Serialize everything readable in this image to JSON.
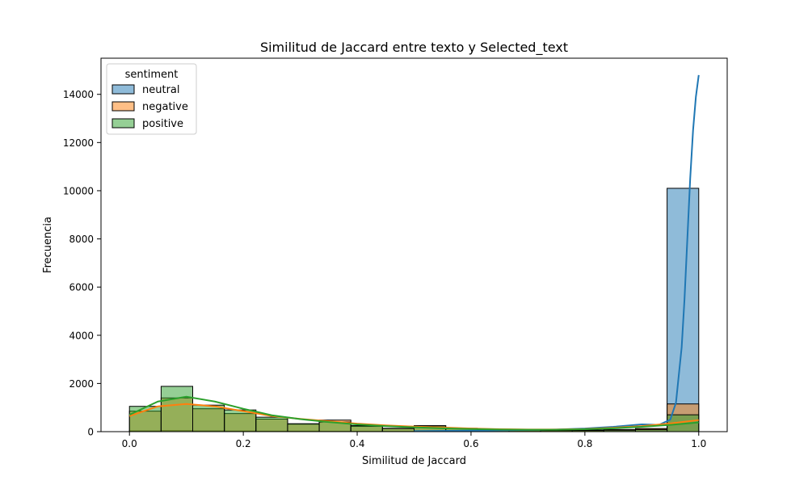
{
  "chart_data": {
    "type": "bar",
    "title": "Similitud de Jaccard entre texto y Selected_text",
    "xlabel": "Similitud de Jaccard",
    "ylabel": "Frecuencia",
    "xlim": [
      -0.05,
      1.05
    ],
    "ylim": [
      0,
      15500
    ],
    "xticks": [
      0.0,
      0.2,
      0.4,
      0.6,
      0.8,
      1.0
    ],
    "xtick_labels": [
      "0.0",
      "0.2",
      "0.4",
      "0.6",
      "0.8",
      "1.0"
    ],
    "yticks": [
      0,
      2000,
      4000,
      6000,
      8000,
      10000,
      12000,
      14000
    ],
    "ytick_labels": [
      "0",
      "2000",
      "4000",
      "6000",
      "8000",
      "10000",
      "12000",
      "14000"
    ],
    "grid": false,
    "legend": {
      "title": "sentiment",
      "placement": "top-left"
    },
    "bin_edges": [
      0.0,
      0.0556,
      0.1111,
      0.1667,
      0.2222,
      0.2778,
      0.3333,
      0.3889,
      0.4444,
      0.5,
      0.5556,
      0.6111,
      0.6667,
      0.7222,
      0.7778,
      0.8333,
      0.8889,
      0.9444,
      1.0
    ],
    "series": [
      {
        "name": "neutral",
        "color": "#1f77b4",
        "values": [
          30,
          40,
          30,
          25,
          20,
          20,
          15,
          15,
          15,
          10,
          10,
          10,
          15,
          20,
          30,
          60,
          110,
          10100
        ],
        "kde": {
          "x": [
            0.5,
            0.6,
            0.7,
            0.75,
            0.8,
            0.85,
            0.9,
            0.93,
            0.95,
            0.96,
            0.97,
            0.975,
            0.98,
            0.985,
            0.99,
            0.995,
            1.0
          ],
          "y": [
            20,
            40,
            70,
            90,
            130,
            200,
            300,
            280,
            500,
            1200,
            3500,
            5500,
            8000,
            10500,
            12500,
            13900,
            14800
          ]
        }
      },
      {
        "name": "negative",
        "color": "#ff7f0e",
        "values": [
          850,
          1400,
          950,
          750,
          520,
          310,
          480,
          220,
          140,
          250,
          140,
          90,
          80,
          70,
          70,
          90,
          130,
          1150
        ],
        "kde": {
          "x": [
            0.0,
            0.05,
            0.1,
            0.15,
            0.2,
            0.25,
            0.3,
            0.35,
            0.4,
            0.45,
            0.5,
            0.55,
            0.6,
            0.65,
            0.7,
            0.75,
            0.8,
            0.85,
            0.9,
            0.95,
            1.0
          ],
          "y": [
            650,
            1050,
            1150,
            1050,
            850,
            650,
            530,
            430,
            330,
            260,
            210,
            170,
            130,
            100,
            90,
            90,
            110,
            160,
            230,
            340,
            480
          ]
        }
      },
      {
        "name": "positive",
        "color": "#2ca02c",
        "values": [
          1050,
          1880,
          1100,
          900,
          600,
          330,
          400,
          250,
          130,
          240,
          120,
          80,
          60,
          50,
          50,
          60,
          80,
          700
        ],
        "kde": {
          "x": [
            0.0,
            0.05,
            0.1,
            0.15,
            0.2,
            0.25,
            0.3,
            0.35,
            0.4,
            0.45,
            0.5,
            0.55,
            0.6,
            0.65,
            0.7,
            0.75,
            0.8,
            0.85,
            0.9,
            0.95,
            1.0
          ],
          "y": [
            700,
            1250,
            1450,
            1250,
            950,
            680,
            520,
            400,
            300,
            230,
            180,
            140,
            110,
            90,
            80,
            80,
            100,
            140,
            200,
            280,
            380
          ]
        }
      }
    ]
  }
}
